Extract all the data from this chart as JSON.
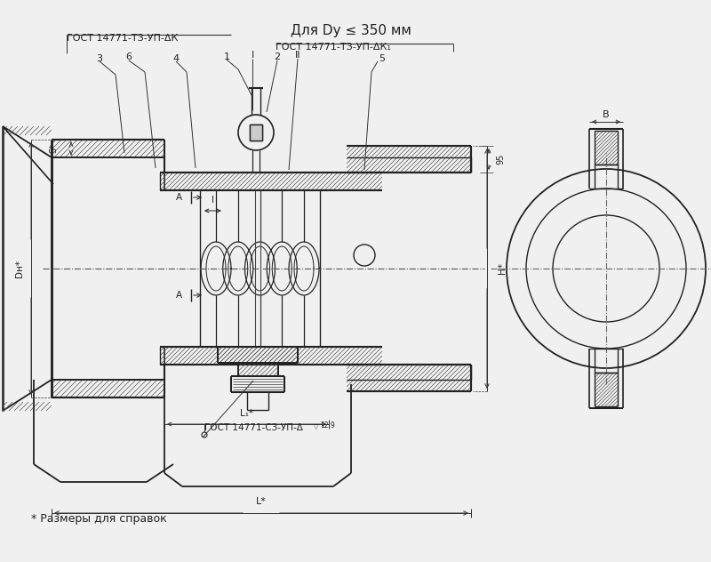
{
  "title": "Для Dy ≤ 350 мм",
  "label_left": "ГОСТ 14771-ТЗ-УП-ΔК",
  "label_right": "ГОСТ 14771-ТЗ-УП-ΔК₁",
  "label_bottom": "ГОСТ 14771-СЗ-УП-Δ",
  "footnote": "* Размеры для справок",
  "bg_color": "#f0f0f0",
  "line_color": "#222222"
}
